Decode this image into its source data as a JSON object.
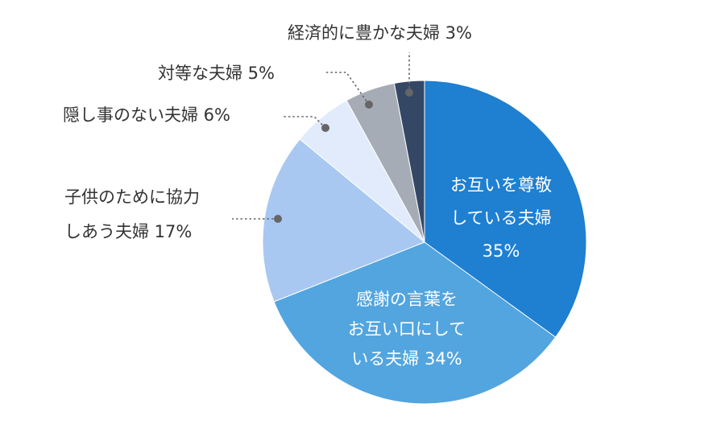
{
  "chart_data": {
    "type": "pie",
    "title": "",
    "slices": [
      {
        "lines": [
          "お互いを尊敬",
          "している夫婦",
          "35%"
        ],
        "value": 35,
        "color": "#1F7FD1"
      },
      {
        "lines": [
          "感謝の言葉を",
          "お互い口にして",
          "いる夫婦 34%"
        ],
        "value": 34,
        "color": "#52A5DF"
      },
      {
        "lines": [
          "子供のために協力",
          "しあう夫婦 17%"
        ],
        "value": 17,
        "color": "#A9C8F1"
      },
      {
        "lines": [
          "隠し事のない夫婦 6%"
        ],
        "value": 6,
        "color": "#E1EBFB"
      },
      {
        "lines": [
          "対等な夫婦 5%"
        ],
        "value": 5,
        "color": "#A6ACB6"
      },
      {
        "lines": [
          "経済的に豊かな夫婦 3%"
        ],
        "value": 3,
        "color": "#344865"
      }
    ]
  }
}
